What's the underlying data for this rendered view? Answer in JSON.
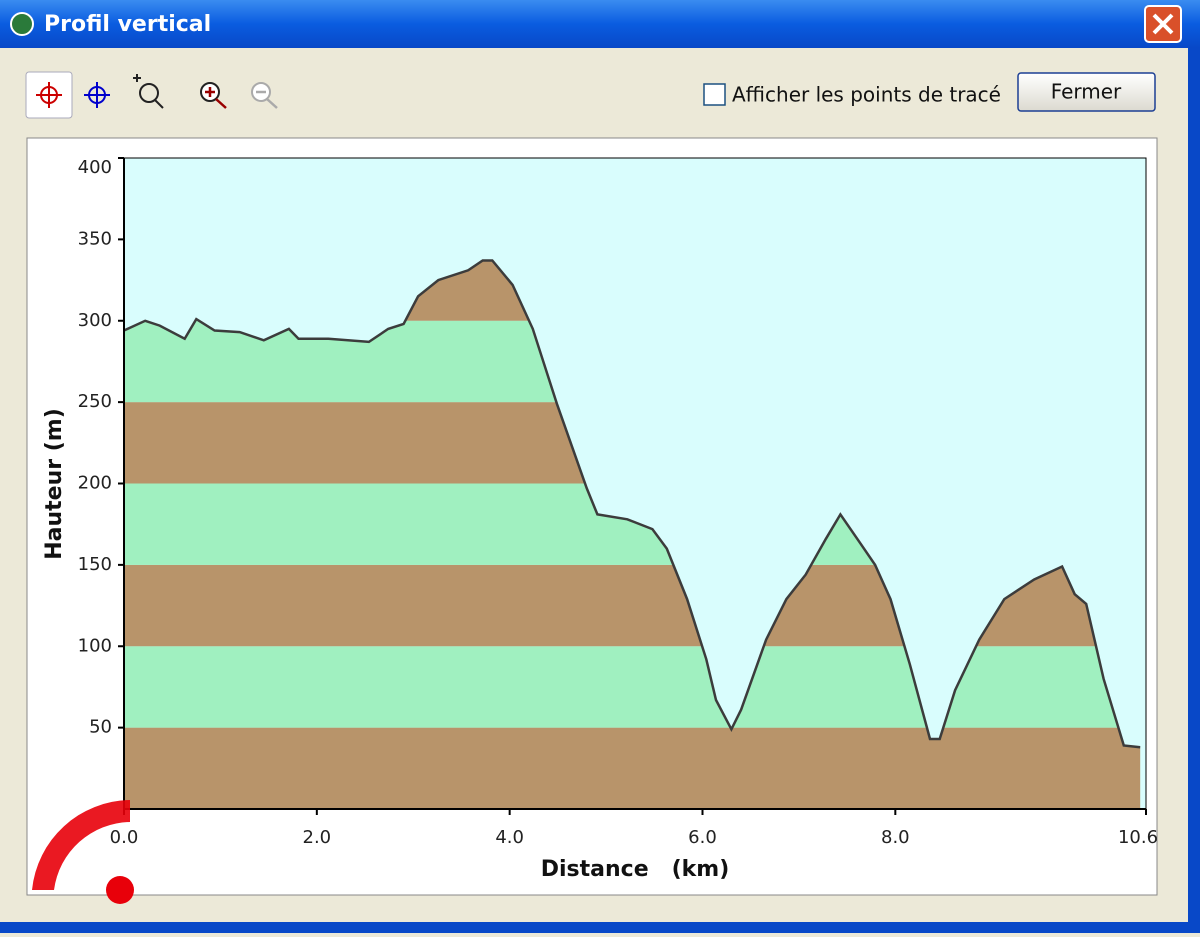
{
  "window": {
    "title": "Profil vertical",
    "checkbox_label": "Afficher les points de tracé",
    "button_label": "Fermer"
  },
  "chart_data": {
    "type": "area",
    "xlabel": "Distance   (km)",
    "ylabel": "Hauteur (m)",
    "x": [
      0,
      0.22,
      0.37,
      0.63,
      0.75,
      0.94,
      1.2,
      1.45,
      1.71,
      1.81,
      2.12,
      2.54,
      2.74,
      2.9,
      3.05,
      3.26,
      3.57,
      3.72,
      3.82,
      4.03,
      4.24,
      4.49,
      4.8,
      4.91,
      5.22,
      5.48,
      5.63,
      5.84,
      6.04,
      6.14,
      6.3,
      6.4,
      6.66,
      6.87,
      7.07,
      7.28,
      7.43,
      7.64,
      7.79,
      7.95,
      8.15,
      8.36,
      8.46,
      8.62,
      8.87,
      9.13,
      9.44,
      9.73,
      9.86,
      9.98,
      10.16,
      10.37,
      10.54
    ],
    "values": [
      294,
      300,
      297,
      289,
      301,
      294,
      293,
      288,
      295,
      289,
      289,
      287,
      295,
      298,
      315,
      325,
      331,
      337,
      337,
      322,
      295,
      249,
      197,
      181,
      178,
      172,
      160,
      129,
      92,
      67,
      49,
      61,
      104,
      129,
      144,
      166,
      181,
      163,
      150,
      129,
      89,
      43,
      43,
      73,
      104,
      129,
      141,
      149,
      132,
      126,
      80,
      39,
      38
    ],
    "xlim": [
      0,
      10.6
    ],
    "xticks": [
      {
        "value": 0,
        "label": "0.0"
      },
      {
        "value": 2,
        "label": "2.0"
      },
      {
        "value": 4,
        "label": "4.0"
      },
      {
        "value": 6,
        "label": "6.0"
      },
      {
        "value": 8,
        "label": "8.0"
      },
      10.6
    ],
    "ylim": [
      0,
      400
    ],
    "yticks": [
      50,
      100,
      150,
      200,
      250,
      300,
      350,
      400
    ],
    "line_color": "#3c3c3c",
    "background": "#d9fdfd",
    "band_colors": [
      "#b8946a",
      "#a0f0c0"
    ]
  }
}
